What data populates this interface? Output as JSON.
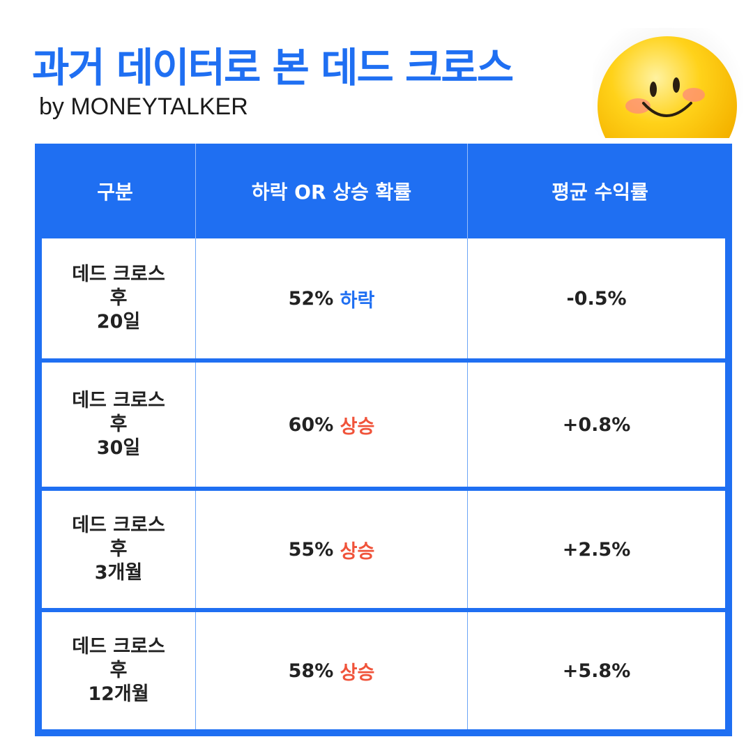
{
  "header": {
    "title": "과거 데이터로 본 데드 크로스",
    "byline": "by MONEYTALKER"
  },
  "emoji": {
    "icon": "smiling-face-emoji"
  },
  "table": {
    "columns": [
      "구분",
      "하락 OR 상승 확률",
      "평균 수익률"
    ],
    "rows": [
      {
        "label": [
          "데드 크로스",
          "후",
          "20일"
        ],
        "pct": "52%",
        "dir": "하락",
        "dir_type": "down",
        "avg": "-0.5%"
      },
      {
        "label": [
          "데드 크로스",
          "후",
          "30일"
        ],
        "pct": "60%",
        "dir": "상승",
        "dir_type": "up",
        "avg": "+0.8%"
      },
      {
        "label": [
          "데드 크로스",
          "후",
          "3개월"
        ],
        "pct": "55%",
        "dir": "상승",
        "dir_type": "up",
        "avg": "+2.5%"
      },
      {
        "label": [
          "데드 크로스",
          "후",
          "12개월"
        ],
        "pct": "58%",
        "dir": "상승",
        "dir_type": "up",
        "avg": "+5.8%"
      }
    ]
  },
  "colors": {
    "accent_blue": "#1f6ff2",
    "down_blue": "#1f6ff2",
    "up_red": "#f0533a"
  }
}
